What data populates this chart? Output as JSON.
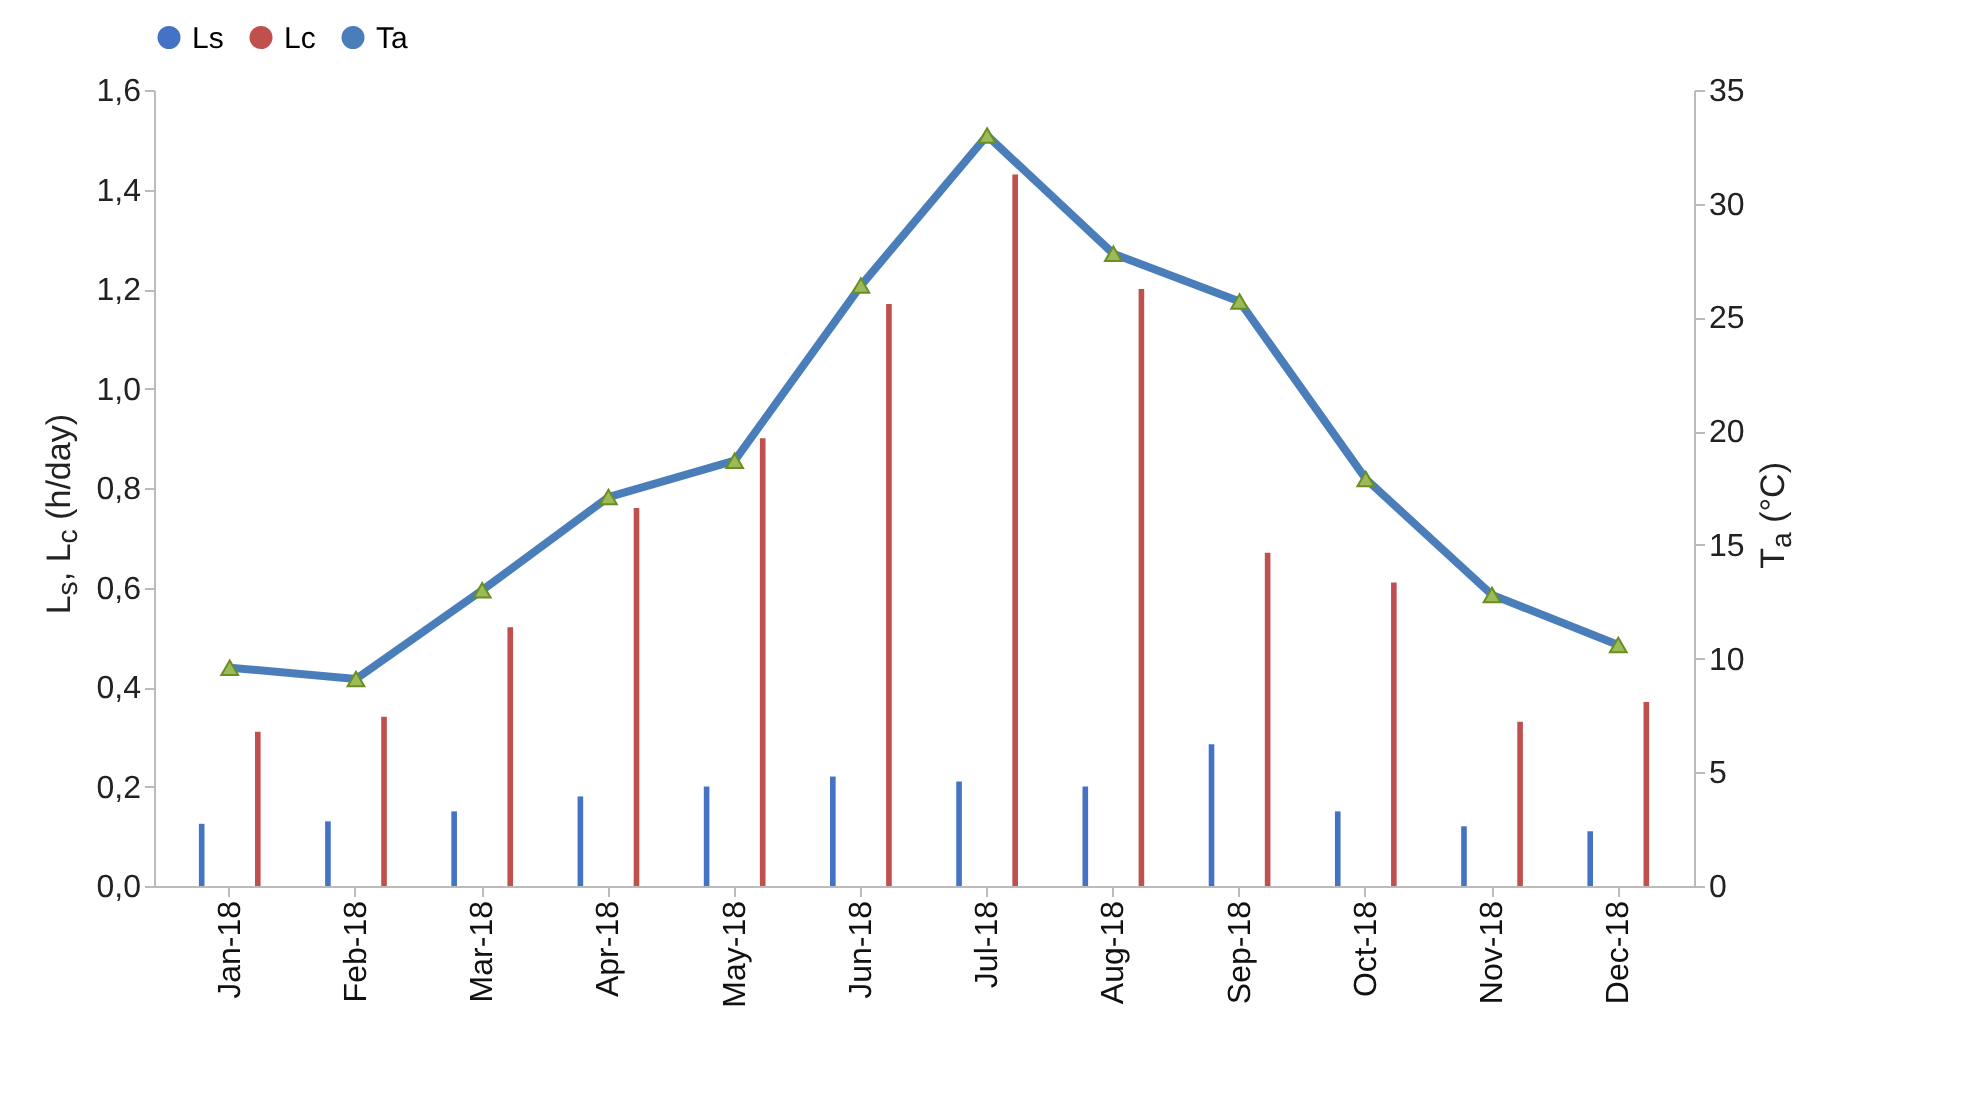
{
  "chart_data": {
    "type": "bar",
    "categories": [
      "Jan-18",
      "Feb-18",
      "Mar-18",
      "Apr-18",
      "May-18",
      "Jun-18",
      "Jul-18",
      "Aug-18",
      "Sep-18",
      "Oct-18",
      "Nov-18",
      "Dec-18"
    ],
    "series": [
      {
        "name": "Ls",
        "color": "#4472c4",
        "values": [
          0.125,
          0.13,
          0.15,
          0.18,
          0.2,
          0.22,
          0.21,
          0.2,
          0.285,
          0.15,
          0.12,
          0.11
        ]
      },
      {
        "name": "Lc",
        "color": "#c0504d",
        "values": [
          0.31,
          0.34,
          0.52,
          0.76,
          0.9,
          1.17,
          1.43,
          1.2,
          0.67,
          0.61,
          0.33,
          0.37
        ]
      },
      {
        "name": "Ta",
        "type": "line",
        "axis": "y2",
        "color": "#4a7ebb",
        "marker": "triangle",
        "values": [
          9.6,
          9.1,
          13,
          17.1,
          18.7,
          26.4,
          33,
          27.8,
          25.7,
          17.9,
          12.8,
          10.6
        ]
      }
    ],
    "ylabel": "L$_{s}$, L$_{c}$ (h/day)",
    "y2label": "T$_{a}$ (°C)",
    "ylim": [
      0,
      1.6
    ],
    "yticks": [
      {
        "value": 0,
        "label": "0,0"
      },
      {
        "value": 0.2,
        "label": "0,2"
      },
      {
        "value": 0.4,
        "label": "0,4"
      },
      {
        "value": 0.6,
        "label": "0,6"
      },
      {
        "value": 0.8,
        "label": "0,8"
      },
      {
        "value": 1,
        "label": "1,0"
      },
      {
        "value": 1.2,
        "label": "1,2"
      },
      {
        "value": 1.4,
        "label": "1,4"
      },
      {
        "value": 1.6,
        "label": "1,6"
      }
    ],
    "y2lim": [
      0,
      35
    ],
    "y2ticks": [
      0,
      5,
      10,
      15,
      20,
      25,
      30,
      35
    ],
    "legend": "top",
    "grid": false
  }
}
